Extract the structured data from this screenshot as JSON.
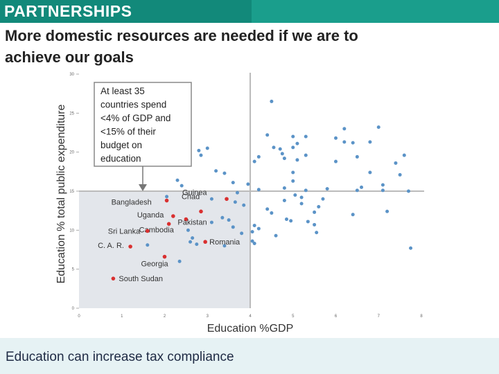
{
  "header": {
    "title": "PARTNERSHIPS"
  },
  "subtitle": {
    "line1": "More domestic resources are needed  if we are to",
    "line2": "achieve our  goals"
  },
  "footer": {
    "text": "Education can increase tax compliance"
  },
  "colors": {
    "header": "#1a9e8c",
    "header_tab": "#12897a",
    "point_blue": "#5b93c7",
    "point_red": "#d93030",
    "shade": "#e3e6eb",
    "reference_line": "#bbbbbb",
    "footer_bg": "#e6f2f4"
  },
  "chart_data": {
    "type": "scatter",
    "xlabel": "Education %GDP",
    "ylabel": "Education % total public expenditure",
    "xlim": [
      0,
      8
    ],
    "ylim": [
      0,
      30
    ],
    "xticks": [
      "0",
      "1",
      "2",
      "3",
      "4",
      "5",
      "6",
      "7",
      "8"
    ],
    "yticks": [
      "0",
      "5",
      "10",
      "15",
      "20",
      "25",
      "30"
    ],
    "reference_lines": {
      "x": 4,
      "y": 15
    },
    "shaded_region": {
      "x": [
        0,
        4
      ],
      "y": [
        0,
        15
      ]
    },
    "annotation": {
      "lines": [
        "At least 35",
        "countries spend",
        "<4% of GDP and",
        "<15% of their",
        "budget on",
        "education"
      ]
    },
    "labeled_points": [
      {
        "label": "Guinea",
        "x": 3.45,
        "y": 14.0
      },
      {
        "label": "Bangladesh",
        "x": 2.05,
        "y": 13.8
      },
      {
        "label": "Chad",
        "x": 2.85,
        "y": 12.4
      },
      {
        "label": "Uganda",
        "x": 2.2,
        "y": 11.8
      },
      {
        "label": "Pakistan",
        "x": 2.5,
        "y": 11.4
      },
      {
        "label": "Cambodia",
        "x": 2.1,
        "y": 10.8
      },
      {
        "label": "Sri Lanka",
        "x": 1.6,
        "y": 9.9
      },
      {
        "label": "Romania",
        "x": 2.95,
        "y": 8.5
      },
      {
        "label": "C. A. R.",
        "x": 1.2,
        "y": 7.9
      },
      {
        "label": "Georgia",
        "x": 2.0,
        "y": 6.6
      },
      {
        "label": "South Sudan",
        "x": 0.8,
        "y": 3.8
      }
    ],
    "points": [
      [
        4.5,
        26.5
      ],
      [
        6.2,
        23.0
      ],
      [
        7.0,
        23.2
      ],
      [
        4.4,
        22.2
      ],
      [
        5.0,
        22.0
      ],
      [
        5.3,
        22.0
      ],
      [
        6.0,
        21.8
      ],
      [
        6.2,
        21.3
      ],
      [
        6.4,
        21.2
      ],
      [
        6.8,
        21.3
      ],
      [
        5.1,
        21.1
      ],
      [
        5.0,
        20.6
      ],
      [
        4.55,
        20.6
      ],
      [
        4.7,
        20.4
      ],
      [
        3.0,
        20.5
      ],
      [
        2.8,
        20.2
      ],
      [
        2.85,
        19.6
      ],
      [
        4.75,
        19.8
      ],
      [
        5.3,
        19.6
      ],
      [
        6.5,
        19.4
      ],
      [
        7.6,
        19.6
      ],
      [
        4.2,
        19.4
      ],
      [
        4.8,
        19.2
      ],
      [
        5.1,
        19.0
      ],
      [
        4.1,
        18.8
      ],
      [
        6.0,
        18.8
      ],
      [
        7.4,
        18.6
      ],
      [
        3.2,
        17.6
      ],
      [
        5.0,
        17.4
      ],
      [
        3.4,
        17.3
      ],
      [
        6.8,
        17.4
      ],
      [
        7.5,
        17.1
      ],
      [
        2.3,
        16.4
      ],
      [
        5.0,
        16.3
      ],
      [
        3.6,
        16.1
      ],
      [
        3.95,
        15.9
      ],
      [
        7.1,
        15.8
      ],
      [
        6.6,
        15.5
      ],
      [
        2.4,
        15.7
      ],
      [
        4.8,
        15.4
      ],
      [
        4.2,
        15.2
      ],
      [
        5.3,
        15.1
      ],
      [
        5.8,
        15.3
      ],
      [
        6.5,
        15.1
      ],
      [
        7.1,
        15.1
      ],
      [
        7.7,
        15.0
      ],
      [
        3.7,
        14.8
      ],
      [
        5.05,
        14.5
      ],
      [
        5.2,
        14.2
      ],
      [
        5.7,
        14.0
      ],
      [
        2.05,
        14.3
      ],
      [
        3.1,
        14.0
      ],
      [
        4.8,
        13.8
      ],
      [
        5.2,
        13.4
      ],
      [
        3.65,
        13.6
      ],
      [
        3.85,
        13.2
      ],
      [
        5.6,
        13.0
      ],
      [
        7.2,
        12.4
      ],
      [
        4.4,
        12.7
      ],
      [
        4.5,
        12.2
      ],
      [
        5.5,
        12.3
      ],
      [
        6.4,
        12.0
      ],
      [
        3.35,
        11.6
      ],
      [
        3.5,
        11.3
      ],
      [
        4.85,
        11.4
      ],
      [
        3.1,
        11.0
      ],
      [
        4.95,
        11.2
      ],
      [
        5.35,
        11.1
      ],
      [
        3.6,
        10.4
      ],
      [
        4.1,
        10.6
      ],
      [
        5.5,
        10.7
      ],
      [
        4.2,
        10.2
      ],
      [
        2.55,
        10.0
      ],
      [
        3.8,
        9.6
      ],
      [
        4.05,
        9.8
      ],
      [
        4.6,
        9.3
      ],
      [
        5.55,
        9.7
      ],
      [
        2.65,
        9.0
      ],
      [
        2.6,
        8.5
      ],
      [
        1.6,
        8.1
      ],
      [
        2.75,
        8.2
      ],
      [
        4.1,
        8.3
      ],
      [
        4.05,
        8.6
      ],
      [
        3.4,
        8.0
      ],
      [
        7.75,
        7.7
      ],
      [
        2.35,
        6.0
      ]
    ]
  }
}
